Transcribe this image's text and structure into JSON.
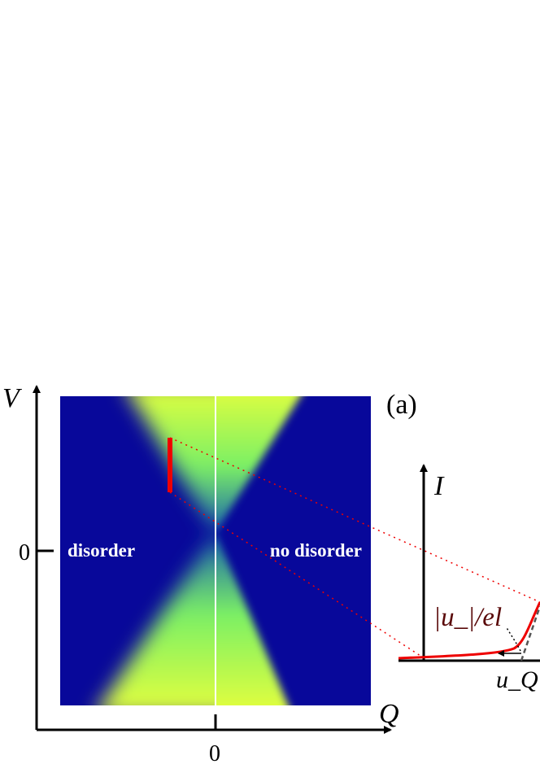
{
  "panel_label": "(a)",
  "main_plot": {
    "y_axis_label": "V",
    "x_axis_label": "Q",
    "y_tick": "0",
    "x_tick": "0",
    "left_label": "disorder",
    "right_label": "no disorder"
  },
  "inset": {
    "y_axis_label": "I",
    "annotation": "|u_|/el",
    "x_label": "u_Q"
  }
}
